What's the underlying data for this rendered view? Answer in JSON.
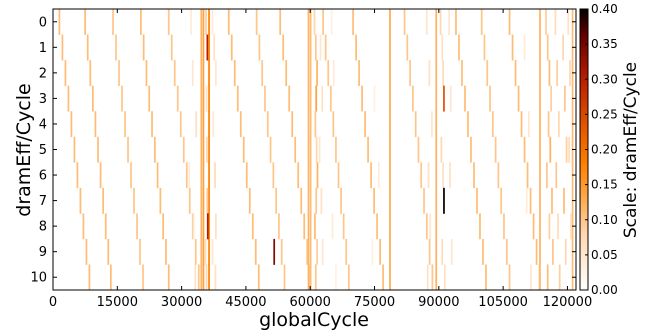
{
  "chart_data": {
    "type": "heatmap",
    "xlabel": "globalCycle",
    "ylabel": "dramEff/Cycle",
    "colorbar_label": "Scale: dramEff/Cycle",
    "colormap": "gist_heat_r",
    "grid": false,
    "legend": "colorbar-right",
    "xlim": [
      0,
      122000
    ],
    "ylim": [
      -0.5,
      10.5
    ],
    "y_inverted": true,
    "x_ticks": [
      0,
      15000,
      30000,
      45000,
      60000,
      75000,
      90000,
      105000,
      120000
    ],
    "x_tick_labels": [
      "0",
      "15000",
      "30000",
      "45000",
      "60000",
      "75000",
      "90000",
      "105000",
      "120000"
    ],
    "y_ticks": [
      0,
      1,
      2,
      3,
      4,
      5,
      6,
      7,
      8,
      9,
      10
    ],
    "y_tick_labels": [
      "0",
      "1",
      "2",
      "3",
      "4",
      "5",
      "6",
      "7",
      "8",
      "9",
      "10"
    ],
    "color_range": [
      0.0,
      0.4
    ],
    "color_ticks": [
      0.0,
      0.05,
      0.1,
      0.15,
      0.2,
      0.25,
      0.3,
      0.35,
      0.4
    ],
    "color_tick_labels": [
      "0.00",
      "0.05",
      "0.10",
      "0.15",
      "0.20",
      "0.25",
      "0.30",
      "0.35",
      "0.40"
    ],
    "cell_width_cycles": 400,
    "full_height_bands": [
      {
        "x": 34600,
        "value": 0.12
      },
      {
        "x": 35100,
        "value": 0.14
      },
      {
        "x": 36400,
        "value": 0.18
      },
      {
        "x": 59600,
        "value": 0.12
      },
      {
        "x": 60100,
        "value": 0.11
      },
      {
        "x": 78600,
        "value": 0.13
      },
      {
        "x": 89400,
        "value": 0.12
      },
      {
        "x": 113600,
        "value": 0.12
      },
      {
        "x": 121200,
        "value": 0.11
      }
    ],
    "diagonal_streaks": [
      {
        "start": 1500,
        "step": 700,
        "value": 0.11
      },
      {
        "start": 7500,
        "step": 600,
        "value": 0.11
      },
      {
        "start": 14000,
        "step": 700,
        "value": 0.1
      },
      {
        "start": 20500,
        "step": 650,
        "value": 0.11
      },
      {
        "start": 27000,
        "step": 700,
        "value": 0.1
      },
      {
        "start": 41000,
        "step": 700,
        "value": 0.11
      },
      {
        "start": 47500,
        "step": 650,
        "value": 0.1
      },
      {
        "start": 53000,
        "step": 700,
        "value": 0.11
      },
      {
        "start": 63000,
        "step": 600,
        "value": 0.1
      },
      {
        "start": 70000,
        "step": 700,
        "value": 0.11
      },
      {
        "start": 82000,
        "step": 650,
        "value": 0.1
      },
      {
        "start": 94000,
        "step": 700,
        "value": 0.11
      },
      {
        "start": 100000,
        "step": 650,
        "value": 0.1
      },
      {
        "start": 106500,
        "step": 700,
        "value": 0.11
      }
    ],
    "cluster_cells": [
      {
        "x": 32200,
        "y": 0,
        "value": 0.04
      },
      {
        "x": 32600,
        "y": 2,
        "value": 0.05
      },
      {
        "x": 33400,
        "y": 4,
        "value": 0.06
      },
      {
        "x": 31800,
        "y": 6,
        "value": 0.04
      },
      {
        "x": 32800,
        "y": 8,
        "value": 0.05
      },
      {
        "x": 33200,
        "y": 10,
        "value": 0.06
      },
      {
        "x": 35700,
        "y": 0,
        "value": 0.09
      },
      {
        "x": 36000,
        "y": 1,
        "value": 0.3
      },
      {
        "x": 35800,
        "y": 3,
        "value": 0.06
      },
      {
        "x": 35900,
        "y": 5,
        "value": 0.08
      },
      {
        "x": 36000,
        "y": 7,
        "value": 0.1
      },
      {
        "x": 36100,
        "y": 8,
        "value": 0.3
      },
      {
        "x": 35600,
        "y": 9,
        "value": 0.07
      },
      {
        "x": 35800,
        "y": 10,
        "value": 0.08
      },
      {
        "x": 37200,
        "y": 0,
        "value": 0.04
      },
      {
        "x": 37600,
        "y": 1,
        "value": 0.06
      },
      {
        "x": 38000,
        "y": 2,
        "value": 0.05
      },
      {
        "x": 37400,
        "y": 4,
        "value": 0.05
      },
      {
        "x": 37800,
        "y": 6,
        "value": 0.07
      },
      {
        "x": 38000,
        "y": 8,
        "value": 0.06
      },
      {
        "x": 37200,
        "y": 9,
        "value": 0.05
      },
      {
        "x": 37900,
        "y": 10,
        "value": 0.06
      },
      {
        "x": 51600,
        "y": 9,
        "value": 0.34
      },
      {
        "x": 61000,
        "y": 0,
        "value": 0.08
      },
      {
        "x": 61300,
        "y": 1,
        "value": 0.1
      },
      {
        "x": 61600,
        "y": 2,
        "value": 0.12
      },
      {
        "x": 61400,
        "y": 3,
        "value": 0.14
      },
      {
        "x": 61200,
        "y": 4,
        "value": 0.1
      },
      {
        "x": 61500,
        "y": 5,
        "value": 0.08
      },
      {
        "x": 61700,
        "y": 6,
        "value": 0.12
      },
      {
        "x": 61400,
        "y": 7,
        "value": 0.1
      },
      {
        "x": 61100,
        "y": 8,
        "value": 0.11
      },
      {
        "x": 61600,
        "y": 9,
        "value": 0.09
      },
      {
        "x": 61300,
        "y": 10,
        "value": 0.1
      },
      {
        "x": 62400,
        "y": 1,
        "value": 0.05
      },
      {
        "x": 62800,
        "y": 3,
        "value": 0.06
      },
      {
        "x": 62200,
        "y": 5,
        "value": 0.05
      },
      {
        "x": 62600,
        "y": 7,
        "value": 0.06
      },
      {
        "x": 62900,
        "y": 9,
        "value": 0.05
      },
      {
        "x": 65000,
        "y": 0,
        "value": 0.03
      },
      {
        "x": 65500,
        "y": 2,
        "value": 0.04
      },
      {
        "x": 65200,
        "y": 8,
        "value": 0.04
      },
      {
        "x": 66000,
        "y": 10,
        "value": 0.03
      },
      {
        "x": 75000,
        "y": 3,
        "value": 0.03
      },
      {
        "x": 76000,
        "y": 6,
        "value": 0.04
      },
      {
        "x": 74500,
        "y": 9,
        "value": 0.03
      },
      {
        "x": 87200,
        "y": 0,
        "value": 0.05
      },
      {
        "x": 87800,
        "y": 2,
        "value": 0.06
      },
      {
        "x": 88400,
        "y": 4,
        "value": 0.05
      },
      {
        "x": 87600,
        "y": 6,
        "value": 0.06
      },
      {
        "x": 88000,
        "y": 8,
        "value": 0.05
      },
      {
        "x": 87400,
        "y": 10,
        "value": 0.06
      },
      {
        "x": 90400,
        "y": 0,
        "value": 0.08
      },
      {
        "x": 90800,
        "y": 1,
        "value": 0.06
      },
      {
        "x": 91000,
        "y": 2,
        "value": 0.07
      },
      {
        "x": 91200,
        "y": 3,
        "value": 0.24
      },
      {
        "x": 90600,
        "y": 5,
        "value": 0.08
      },
      {
        "x": 91000,
        "y": 6,
        "value": 0.06
      },
      {
        "x": 91200,
        "y": 7,
        "value": 0.4
      },
      {
        "x": 90800,
        "y": 9,
        "value": 0.07
      },
      {
        "x": 91400,
        "y": 10,
        "value": 0.06
      },
      {
        "x": 92400,
        "y": 0,
        "value": 0.05
      },
      {
        "x": 92800,
        "y": 3,
        "value": 0.05
      },
      {
        "x": 92600,
        "y": 6,
        "value": 0.06
      },
      {
        "x": 93000,
        "y": 9,
        "value": 0.05
      },
      {
        "x": 110000,
        "y": 1,
        "value": 0.04
      },
      {
        "x": 111000,
        "y": 4,
        "value": 0.05
      },
      {
        "x": 110500,
        "y": 7,
        "value": 0.04
      },
      {
        "x": 111500,
        "y": 10,
        "value": 0.05
      },
      {
        "x": 115000,
        "y": 0,
        "value": 0.09
      },
      {
        "x": 115400,
        "y": 1,
        "value": 0.1
      },
      {
        "x": 115800,
        "y": 2,
        "value": 0.11
      },
      {
        "x": 116200,
        "y": 3,
        "value": 0.09
      },
      {
        "x": 115600,
        "y": 4,
        "value": 0.1
      },
      {
        "x": 116000,
        "y": 5,
        "value": 0.12
      },
      {
        "x": 115200,
        "y": 6,
        "value": 0.1
      },
      {
        "x": 116400,
        "y": 7,
        "value": 0.11
      },
      {
        "x": 115800,
        "y": 8,
        "value": 0.09
      },
      {
        "x": 116600,
        "y": 9,
        "value": 0.1
      },
      {
        "x": 115400,
        "y": 10,
        "value": 0.11
      },
      {
        "x": 117200,
        "y": 0,
        "value": 0.07
      },
      {
        "x": 117600,
        "y": 2,
        "value": 0.09
      },
      {
        "x": 118000,
        "y": 4,
        "value": 0.08
      },
      {
        "x": 117400,
        "y": 6,
        "value": 0.1
      },
      {
        "x": 117800,
        "y": 8,
        "value": 0.07
      },
      {
        "x": 118200,
        "y": 10,
        "value": 0.09
      },
      {
        "x": 119000,
        "y": 1,
        "value": 0.08
      },
      {
        "x": 119400,
        "y": 3,
        "value": 0.1
      },
      {
        "x": 119800,
        "y": 5,
        "value": 0.09
      },
      {
        "x": 119200,
        "y": 7,
        "value": 0.11
      },
      {
        "x": 119600,
        "y": 9,
        "value": 0.08
      },
      {
        "x": 120200,
        "y": 0,
        "value": 0.06
      },
      {
        "x": 120600,
        "y": 2,
        "value": 0.08
      },
      {
        "x": 120400,
        "y": 5,
        "value": 0.07
      },
      {
        "x": 120800,
        "y": 8,
        "value": 0.06
      }
    ]
  }
}
